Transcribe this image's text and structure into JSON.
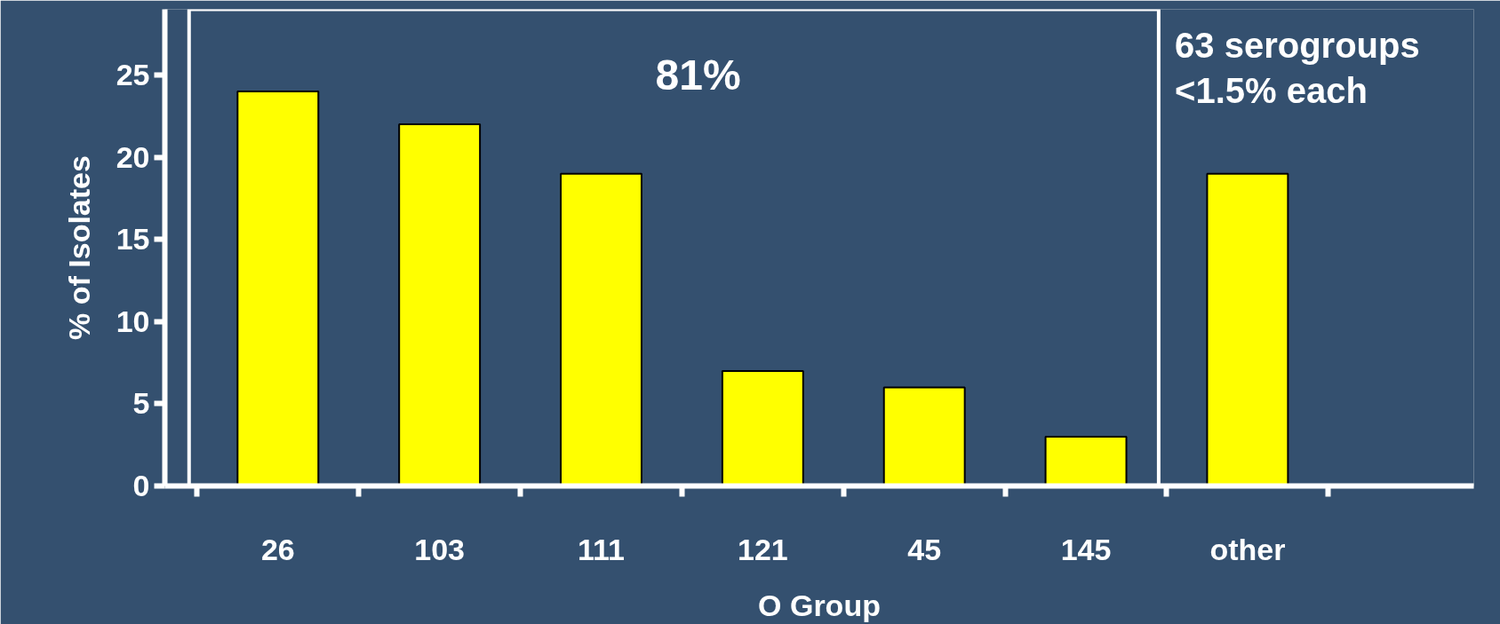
{
  "chart_data": {
    "type": "bar",
    "categories": [
      "26",
      "103",
      "111",
      "121",
      "45",
      "145",
      "other"
    ],
    "values": [
      24,
      22,
      19,
      7,
      6,
      3,
      19
    ],
    "color": "#ffff00",
    "xlabel": "O Group",
    "ylabel": "% of Isolates",
    "ylim": [
      0,
      29
    ],
    "yticks": [
      0,
      5,
      10,
      15,
      20,
      25
    ],
    "grid": false,
    "annotations": [
      "81%",
      "63 serogroups\n<1.5% each"
    ]
  }
}
